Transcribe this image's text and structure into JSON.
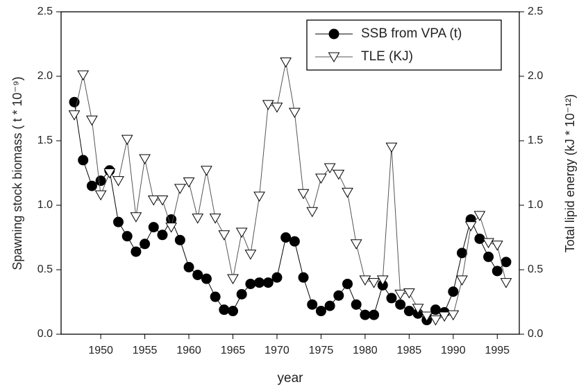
{
  "chart_data": {
    "type": "line",
    "x_label": "year",
    "y_label": "Spawning stock biomass ( t * 10⁻⁹)",
    "y2_label": "Total lipid energy (kJ * 10⁻¹²)",
    "x": [
      1947,
      1948,
      1949,
      1950,
      1951,
      1952,
      1953,
      1954,
      1955,
      1956,
      1957,
      1958,
      1959,
      1960,
      1961,
      1962,
      1963,
      1964,
      1965,
      1966,
      1967,
      1968,
      1969,
      1970,
      1971,
      1972,
      1973,
      1974,
      1975,
      1976,
      1977,
      1978,
      1979,
      1980,
      1981,
      1982,
      1983,
      1984,
      1985,
      1986,
      1987,
      1988,
      1989,
      1990,
      1991,
      1992,
      1993,
      1994,
      1995,
      1996
    ],
    "series": [
      {
        "name": "SSB from VPA (t)",
        "color": "#000000",
        "marker": "circle",
        "values": [
          1.8,
          1.35,
          1.15,
          1.19,
          1.27,
          0.87,
          0.76,
          0.64,
          0.7,
          0.83,
          0.77,
          0.89,
          0.73,
          0.52,
          0.46,
          0.43,
          0.29,
          0.19,
          0.18,
          0.31,
          0.39,
          0.4,
          0.4,
          0.44,
          0.75,
          0.72,
          0.44,
          0.23,
          0.18,
          0.22,
          0.3,
          0.39,
          0.23,
          0.15,
          0.15,
          0.38,
          0.28,
          0.23,
          0.18,
          0.16,
          0.11,
          0.19,
          0.17,
          0.33,
          0.63,
          0.89,
          0.74,
          0.6,
          0.49,
          0.56
        ]
      },
      {
        "name": "TLE (KJ)",
        "color": "#555555",
        "marker": "triangle-down",
        "axis": "y2",
        "values": [
          1.7,
          2.01,
          1.66,
          1.08,
          1.25,
          1.19,
          1.51,
          0.91,
          1.36,
          1.04,
          1.04,
          0.83,
          1.13,
          1.18,
          0.9,
          1.27,
          0.9,
          0.77,
          0.43,
          0.79,
          0.62,
          1.07,
          1.78,
          1.76,
          2.11,
          1.72,
          1.09,
          0.95,
          1.21,
          1.29,
          1.24,
          1.1,
          0.7,
          0.42,
          0.4,
          0.42,
          1.45,
          0.31,
          0.32,
          0.2,
          0.14,
          0.11,
          0.14,
          0.15,
          0.42,
          0.84,
          0.92,
          0.71,
          0.69,
          0.4
        ]
      }
    ],
    "xlim": [
      1945.5,
      1997.5
    ],
    "xticks": [
      1950,
      1955,
      1960,
      1965,
      1970,
      1975,
      1980,
      1985,
      1990,
      1995
    ],
    "ylim": [
      0,
      2.5
    ],
    "yticks": [
      {
        "value": 0,
        "label": "0.0"
      },
      {
        "value": 0.5,
        "label": "0.5"
      },
      {
        "value": 1,
        "label": "1.0"
      },
      {
        "value": 1.5,
        "label": "1.5"
      },
      {
        "value": 2,
        "label": "2.0"
      },
      {
        "value": 2.5,
        "label": "2.5"
      }
    ],
    "y2lim": [
      0,
      2.5
    ],
    "y2ticks": [
      {
        "value": 0,
        "label": "0.0"
      },
      {
        "value": 0.5,
        "label": "0.5"
      },
      {
        "value": 1,
        "label": "1.0"
      },
      {
        "value": 1.5,
        "label": "1.5"
      },
      {
        "value": 2,
        "label": "2.0"
      },
      {
        "value": 2.5,
        "label": "2.5"
      }
    ],
    "legend": "upper right"
  }
}
